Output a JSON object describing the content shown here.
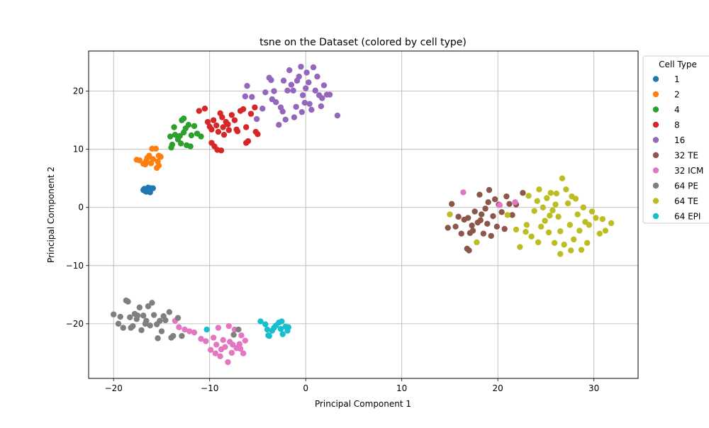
{
  "chart_data": {
    "type": "scatter",
    "title": "tsne on the Dataset (colored by cell type)",
    "xlabel": "Principal Component 1",
    "ylabel": "Principal Component 2",
    "xlim": [
      -22.6,
      34.6
    ],
    "ylim": [
      -29.4,
      26.9
    ],
    "xticks": [
      -20,
      -10,
      0,
      10,
      20,
      30
    ],
    "yticks": [
      -20,
      -10,
      0,
      10,
      20
    ],
    "grid": true,
    "legend": {
      "title": "Cell Type",
      "placement": "right-outside-top"
    },
    "series": [
      {
        "name": "1",
        "color": "#1f77b4",
        "points": [
          [
            -16.8,
            3.2
          ],
          [
            -16.5,
            2.9
          ],
          [
            -16.3,
            3.1
          ],
          [
            -16.6,
            2.7
          ],
          [
            -16.1,
            3.3
          ],
          [
            -16.9,
            3.0
          ],
          [
            -16.4,
            3.4
          ],
          [
            -16.7,
            2.8
          ],
          [
            -16.2,
            2.6
          ],
          [
            -16.5,
            3.2
          ],
          [
            -15.9,
            3.3
          ]
        ]
      },
      {
        "name": "2",
        "color": "#ff7f0e",
        "points": [
          [
            -17.6,
            8.2
          ],
          [
            -17.3,
            8.1
          ],
          [
            -16.9,
            7.5
          ],
          [
            -16.6,
            8.0
          ],
          [
            -16.3,
            8.9
          ],
          [
            -16.0,
            10.1
          ],
          [
            -15.6,
            10.1
          ],
          [
            -15.3,
            8.9
          ],
          [
            -15.1,
            8.7
          ],
          [
            -15.4,
            7.9
          ],
          [
            -15.3,
            7.2
          ],
          [
            -15.5,
            6.8
          ],
          [
            -16.1,
            7.6
          ],
          [
            -16.5,
            8.5
          ],
          [
            -15.9,
            8.3
          ],
          [
            -16.7,
            7.4
          ]
        ]
      },
      {
        "name": "4",
        "color": "#2ca02c",
        "points": [
          [
            -14.1,
            12.2
          ],
          [
            -13.7,
            13.8
          ],
          [
            -13.6,
            12.5
          ],
          [
            -13.3,
            11.7
          ],
          [
            -13.1,
            12.3
          ],
          [
            -12.9,
            15.0
          ],
          [
            -12.7,
            15.3
          ],
          [
            -12.5,
            13.6
          ],
          [
            -12.2,
            14.2
          ],
          [
            -11.9,
            12.4
          ],
          [
            -11.6,
            14.0
          ],
          [
            -11.3,
            12.7
          ],
          [
            -10.9,
            12.2
          ],
          [
            -12.4,
            10.7
          ],
          [
            -12.0,
            10.5
          ],
          [
            -13.0,
            11.0
          ],
          [
            -12.7,
            12.9
          ],
          [
            -13.9,
            10.8
          ],
          [
            -14.0,
            10.3
          ]
        ]
      },
      {
        "name": "8",
        "color": "#d62728",
        "points": [
          [
            -11.1,
            16.6
          ],
          [
            -10.5,
            17.0
          ],
          [
            -10.2,
            14.7
          ],
          [
            -10.0,
            13.9
          ],
          [
            -9.8,
            13.4
          ],
          [
            -9.6,
            15.0
          ],
          [
            -9.3,
            14.1
          ],
          [
            -9.1,
            13.0
          ],
          [
            -8.9,
            16.2
          ],
          [
            -8.7,
            15.5
          ],
          [
            -8.5,
            12.5
          ],
          [
            -8.3,
            14.7
          ],
          [
            -8.0,
            13.3
          ],
          [
            -7.7,
            15.9
          ],
          [
            -7.4,
            15.0
          ],
          [
            -7.1,
            13.1
          ],
          [
            -6.8,
            16.6
          ],
          [
            -6.5,
            16.9
          ],
          [
            -6.2,
            13.8
          ],
          [
            -6.0,
            11.4
          ],
          [
            -6.2,
            11.1
          ],
          [
            -5.7,
            16.1
          ],
          [
            -5.3,
            17.2
          ],
          [
            -5.2,
            13.0
          ],
          [
            -5.0,
            12.6
          ],
          [
            -9.2,
            9.9
          ],
          [
            -8.8,
            9.8
          ],
          [
            -9.8,
            11.1
          ],
          [
            -9.5,
            10.5
          ],
          [
            -8.1,
            14.3
          ],
          [
            -7.2,
            13.4
          ],
          [
            -8.6,
            13.8
          ]
        ]
      },
      {
        "name": "16",
        "color": "#9467bd",
        "points": [
          [
            -6.3,
            19.1
          ],
          [
            -6.1,
            20.9
          ],
          [
            -5.6,
            19.0
          ],
          [
            -5.1,
            15.2
          ],
          [
            -4.2,
            19.8
          ],
          [
            -3.8,
            22.3
          ],
          [
            -3.6,
            21.9
          ],
          [
            -3.3,
            20.0
          ],
          [
            -3.1,
            18.1
          ],
          [
            -2.8,
            14.2
          ],
          [
            -2.6,
            17.2
          ],
          [
            -2.3,
            21.8
          ],
          [
            -2.1,
            15.1
          ],
          [
            -1.9,
            20.1
          ],
          [
            -1.7,
            23.6
          ],
          [
            -1.5,
            21.1
          ],
          [
            -1.3,
            20.1
          ],
          [
            -1.2,
            15.5
          ],
          [
            -0.9,
            21.8
          ],
          [
            -0.7,
            22.5
          ],
          [
            -0.5,
            24.2
          ],
          [
            -0.3,
            19.3
          ],
          [
            -0.1,
            18.0
          ],
          [
            0.1,
            23.2
          ],
          [
            0.4,
            17.8
          ],
          [
            0.6,
            16.8
          ],
          [
            0.8,
            24.1
          ],
          [
            1.0,
            20.1
          ],
          [
            1.2,
            22.5
          ],
          [
            1.4,
            19.3
          ],
          [
            1.6,
            17.4
          ],
          [
            1.9,
            21.0
          ],
          [
            2.2,
            19.4
          ],
          [
            2.5,
            19.4
          ],
          [
            3.3,
            15.8
          ],
          [
            1.7,
            18.8
          ],
          [
            0.0,
            20.5
          ],
          [
            -1.0,
            17.3
          ],
          [
            -2.4,
            16.5
          ],
          [
            -3.5,
            18.6
          ],
          [
            -4.5,
            17.0
          ],
          [
            0.3,
            21.5
          ],
          [
            -0.4,
            16.4
          ]
        ]
      },
      {
        "name": "32 TE",
        "color": "#8c564b",
        "points": [
          [
            14.8,
            -3.5
          ],
          [
            15.2,
            0.6
          ],
          [
            15.6,
            -3.3
          ],
          [
            15.9,
            -1.6
          ],
          [
            16.2,
            -4.5
          ],
          [
            16.5,
            -2.1
          ],
          [
            16.8,
            -7.1
          ],
          [
            17.0,
            -7.4
          ],
          [
            17.1,
            -4.4
          ],
          [
            17.3,
            -3.1
          ],
          [
            17.6,
            -0.7
          ],
          [
            17.9,
            -2.6
          ],
          [
            18.1,
            2.2
          ],
          [
            18.3,
            -1.2
          ],
          [
            18.5,
            -4.5
          ],
          [
            18.7,
            -0.2
          ],
          [
            18.9,
            -2.8
          ],
          [
            19.1,
            3.0
          ],
          [
            19.3,
            -4.9
          ],
          [
            19.5,
            -1.5
          ],
          [
            19.7,
            1.4
          ],
          [
            19.9,
            -3.3
          ],
          [
            20.1,
            0.5
          ],
          [
            20.4,
            -0.8
          ],
          [
            20.7,
            -3.7
          ],
          [
            20.9,
            1.9
          ],
          [
            21.2,
            0.6
          ],
          [
            21.5,
            -1.3
          ],
          [
            21.9,
            0.5
          ],
          [
            22.6,
            2.5
          ],
          [
            17.4,
            -4.0
          ],
          [
            18.2,
            -2.2
          ],
          [
            16.9,
            -1.8
          ],
          [
            19.0,
            0.9
          ]
        ]
      },
      {
        "name": "32 ICM",
        "color": "#e377c2",
        "points": [
          [
            -13.6,
            -19.5
          ],
          [
            -13.2,
            -20.6
          ],
          [
            -12.6,
            -21.0
          ],
          [
            -12.1,
            -21.3
          ],
          [
            -11.6,
            -21.5
          ],
          [
            -10.9,
            -22.6
          ],
          [
            -10.4,
            -23.0
          ],
          [
            -9.9,
            -24.5
          ],
          [
            -9.6,
            -22.4
          ],
          [
            -9.3,
            -23.6
          ],
          [
            -9.1,
            -20.7
          ],
          [
            -8.9,
            -25.6
          ],
          [
            -8.6,
            -22.8
          ],
          [
            -8.4,
            -24.0
          ],
          [
            -8.1,
            -26.6
          ],
          [
            -7.9,
            -23.1
          ],
          [
            -7.7,
            -25.0
          ],
          [
            -7.4,
            -21.0
          ],
          [
            -7.2,
            -24.2
          ],
          [
            -6.9,
            -23.5
          ],
          [
            -6.7,
            -22.0
          ],
          [
            -6.5,
            -25.1
          ],
          [
            -6.3,
            -22.9
          ],
          [
            -8.0,
            -20.4
          ],
          [
            -7.6,
            -23.6
          ],
          [
            -8.8,
            -24.4
          ],
          [
            -9.4,
            -25.1
          ],
          [
            -6.8,
            -24.3
          ],
          [
            16.4,
            2.6
          ],
          [
            21.8,
            0.9
          ],
          [
            20.2,
            0.4
          ]
        ]
      },
      {
        "name": "64 PE",
        "color": "#7f7f7f",
        "points": [
          [
            -20.0,
            -18.4
          ],
          [
            -19.5,
            -20.0
          ],
          [
            -19.3,
            -18.8
          ],
          [
            -19.0,
            -20.7
          ],
          [
            -18.7,
            -16.0
          ],
          [
            -18.5,
            -16.2
          ],
          [
            -18.3,
            -18.9
          ],
          [
            -18.0,
            -20.4
          ],
          [
            -17.8,
            -18.3
          ],
          [
            -17.6,
            -19.2
          ],
          [
            -17.3,
            -17.2
          ],
          [
            -17.1,
            -21.1
          ],
          [
            -16.9,
            -18.6
          ],
          [
            -16.7,
            -20.0
          ],
          [
            -16.4,
            -17.0
          ],
          [
            -16.2,
            -20.3
          ],
          [
            -16.0,
            -16.4
          ],
          [
            -15.8,
            -18.5
          ],
          [
            -15.5,
            -20.1
          ],
          [
            -15.2,
            -19.5
          ],
          [
            -15.0,
            -21.3
          ],
          [
            -14.8,
            -18.7
          ],
          [
            -14.6,
            -19.4
          ],
          [
            -14.2,
            -18.0
          ],
          [
            -14.0,
            -22.4
          ],
          [
            -13.8,
            -22.1
          ],
          [
            -13.3,
            -19.0
          ],
          [
            -12.9,
            -22.1
          ],
          [
            -15.4,
            -22.5
          ],
          [
            -16.6,
            -19.5
          ],
          [
            -17.5,
            -18.6
          ],
          [
            -18.2,
            -20.7
          ],
          [
            -7.5,
            -21.9
          ],
          [
            -7.0,
            -21.0
          ]
        ]
      },
      {
        "name": "64 TE",
        "color": "#bcbd22",
        "points": [
          [
            15.0,
            -1.2
          ],
          [
            17.8,
            -6.0
          ],
          [
            21.0,
            -1.3
          ],
          [
            21.9,
            -3.8
          ],
          [
            22.3,
            -6.8
          ],
          [
            22.9,
            -4.2
          ],
          [
            23.2,
            2.0
          ],
          [
            23.5,
            -5.0
          ],
          [
            23.8,
            -0.6
          ],
          [
            24.1,
            1.1
          ],
          [
            24.3,
            3.1
          ],
          [
            24.5,
            -3.3
          ],
          [
            24.7,
            0.0
          ],
          [
            24.9,
            -2.3
          ],
          [
            25.1,
            1.6
          ],
          [
            25.3,
            -4.3
          ],
          [
            25.5,
            2.5
          ],
          [
            25.7,
            -0.5
          ],
          [
            25.9,
            -6.1
          ],
          [
            26.1,
            2.4
          ],
          [
            26.3,
            -1.6
          ],
          [
            26.5,
            -4.1
          ],
          [
            26.7,
            5.0
          ],
          [
            26.9,
            -6.4
          ],
          [
            27.1,
            3.1
          ],
          [
            27.3,
            0.7
          ],
          [
            27.5,
            -3.0
          ],
          [
            27.7,
            1.9
          ],
          [
            27.9,
            -5.5
          ],
          [
            28.1,
            1.5
          ],
          [
            28.3,
            -1.2
          ],
          [
            28.5,
            -4.0
          ],
          [
            28.7,
            -7.3
          ],
          [
            28.9,
            0.0
          ],
          [
            29.1,
            -2.5
          ],
          [
            29.3,
            -6.1
          ],
          [
            29.5,
            -3.0
          ],
          [
            29.8,
            -0.7
          ],
          [
            30.2,
            -1.8
          ],
          [
            30.6,
            -4.5
          ],
          [
            30.9,
            -2.0
          ],
          [
            31.2,
            -4.0
          ],
          [
            31.8,
            -2.7
          ],
          [
            26.5,
            -8.0
          ],
          [
            27.6,
            -7.4
          ],
          [
            24.2,
            -6.0
          ],
          [
            25.4,
            -1.4
          ],
          [
            26.0,
            0.5
          ],
          [
            23.0,
            -3.0
          ]
        ]
      },
      {
        "name": "64 EPI",
        "color": "#17becf",
        "points": [
          [
            -10.3,
            -21.0
          ],
          [
            -4.7,
            -19.6
          ],
          [
            -4.2,
            -20.1
          ],
          [
            -4.0,
            -21.0
          ],
          [
            -3.8,
            -22.1
          ],
          [
            -3.5,
            -21.2
          ],
          [
            -3.1,
            -20.3
          ],
          [
            -2.8,
            -19.8
          ],
          [
            -2.6,
            -20.9
          ],
          [
            -2.4,
            -21.8
          ],
          [
            -2.1,
            -20.5
          ],
          [
            -1.9,
            -21.2
          ],
          [
            -1.8,
            -20.6
          ],
          [
            -3.3,
            -20.7
          ],
          [
            -2.5,
            -19.6
          ],
          [
            -3.9,
            -22.0
          ]
        ]
      }
    ]
  }
}
